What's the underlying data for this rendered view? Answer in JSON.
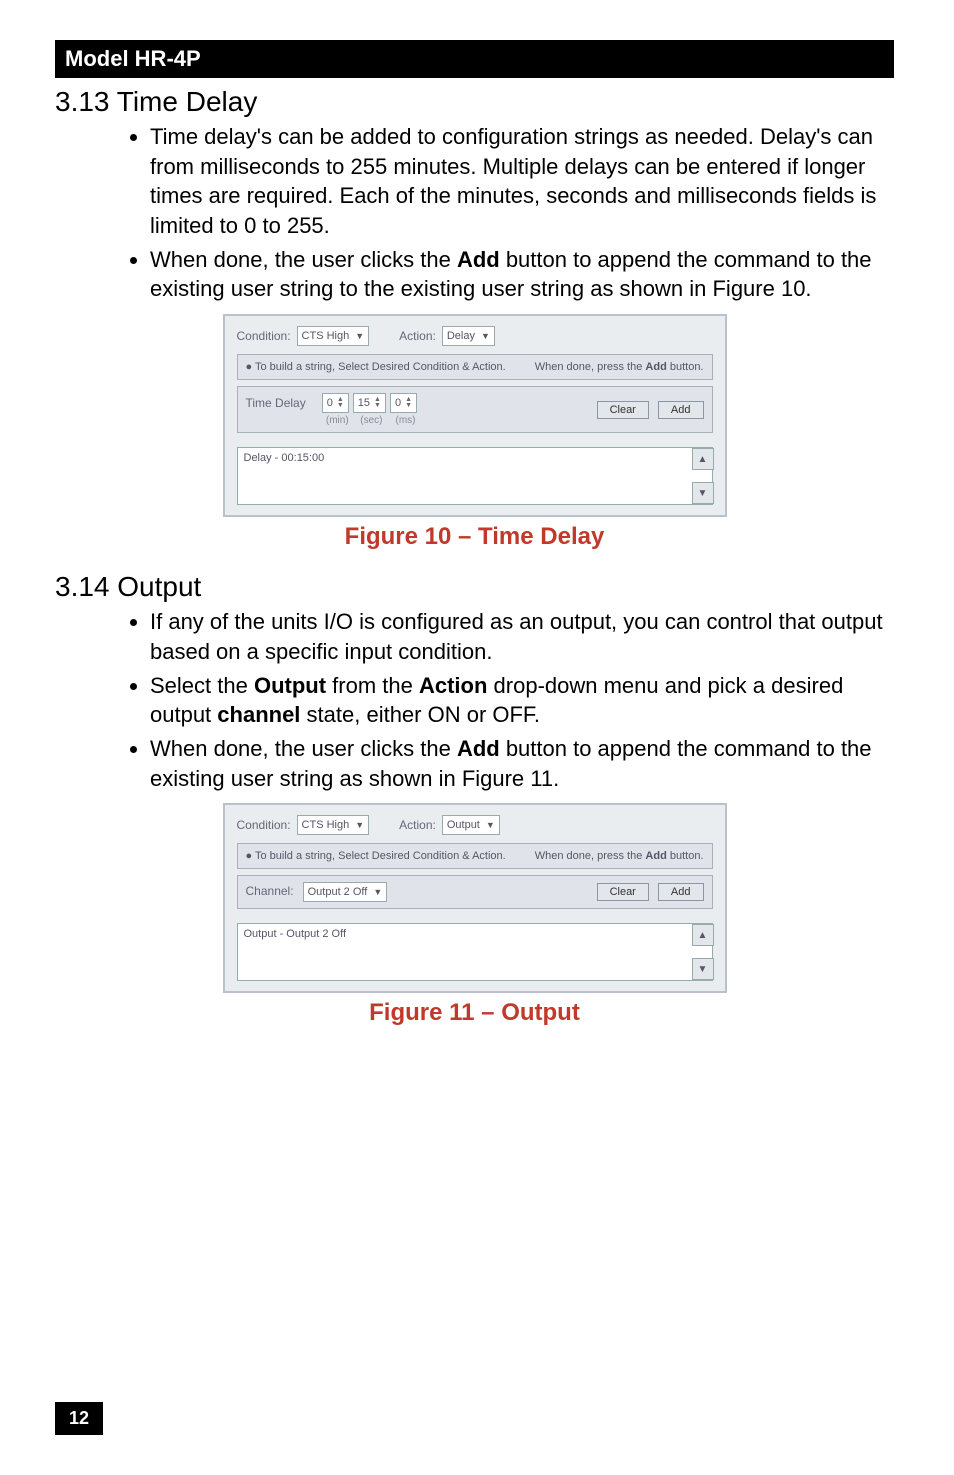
{
  "model_bar": "Model HR-4P",
  "sec313": {
    "title": "3.13 Time Delay",
    "bullets": [
      "Time delay's can be added to configuration strings as needed.  Delay's can from milliseconds to 255 minutes. Multiple delays can be entered if longer times are required. Each of the minutes, seconds and milliseconds fields is limited to 0 to 255.",
      "When done, the user clicks the <b>Add</b> button to append the command to the existing user string to the existing user string as shown in Figure 10."
    ]
  },
  "fig10": {
    "caption": "Figure 10 – Time Delay",
    "condition_lbl": "Condition:",
    "condition_val": "CTS High",
    "action_lbl": "Action:",
    "action_val": "Delay",
    "instr_left": "●  To build a string, Select Desired Condition & Action.",
    "instr_right": "When done, press the <b>Add</b> button.",
    "td_lbl": "Time Delay",
    "min_v": "0",
    "sec_v": "15",
    "ms_v": "0",
    "min_u": "(min)",
    "sec_u": "(sec)",
    "ms_u": "(ms)",
    "clear": "Clear",
    "add": "Add",
    "list_item": "Delay - 00:15:00"
  },
  "sec314": {
    "title": "3.14 Output",
    "bullets": [
      "If any of the units I/O is configured as an output, you can control that output based on a specific input condition.",
      "Select the <b>Output</b> from the <b>Action</b> drop-down menu and pick a desired output <b>channel</b> state, either ON or OFF.",
      "When done, the user clicks the <b>Add</b> button to append the command to the existing user string as shown in Figure 11."
    ]
  },
  "fig11": {
    "caption": "Figure 11 – Output",
    "condition_lbl": "Condition:",
    "condition_val": "CTS High",
    "action_lbl": "Action:",
    "action_val": "Output",
    "instr_left": "●  To build a string, Select Desired Condition & Action.",
    "instr_right": "When done, press the <b>Add</b> button.",
    "ch_lbl": "Channel:",
    "ch_val": "Output 2 Off",
    "clear": "Clear",
    "add": "Add",
    "list_item": "Output - Output 2 Off"
  },
  "page_number": "12"
}
